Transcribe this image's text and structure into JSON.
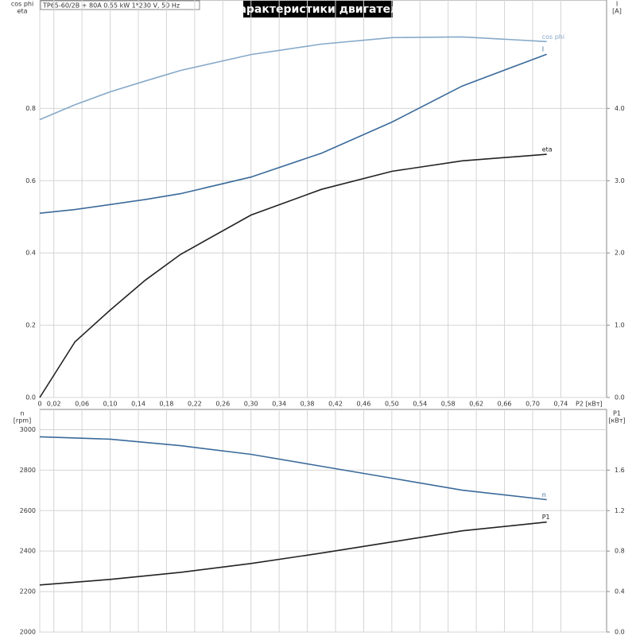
{
  "chart_data": [
    {
      "type": "line",
      "title": "Характеристики двигателя",
      "subtitle": "TP65-60/2B + 80A   0.55 kW   1*230 V, 50 Hz",
      "ylabel": [
        "cos phi",
        "eta"
      ],
      "y2label": [
        "I",
        "[A]"
      ],
      "xlabel": "P2 [кВт]",
      "x": [
        0,
        0.05,
        0.1,
        0.15,
        0.2,
        0.3,
        0.4,
        0.5,
        0.6,
        0.72
      ],
      "xlim": [
        0,
        0.805
      ],
      "xticks": [
        0,
        {
          "value": 0.02,
          "label": "0,02"
        },
        {
          "value": 0.06,
          "label": "0,06"
        },
        {
          "value": 0.1,
          "label": "0,10"
        },
        {
          "value": 0.14,
          "label": "0,14"
        },
        {
          "value": 0.18,
          "label": "0,18"
        },
        {
          "value": 0.22,
          "label": "0,22"
        },
        {
          "value": 0.26,
          "label": "0,26"
        },
        {
          "value": 0.3,
          "label": "0,30"
        },
        {
          "value": 0.34,
          "label": "0,34"
        },
        {
          "value": 0.38,
          "label": "0,38"
        },
        {
          "value": 0.42,
          "label": "0,42"
        },
        {
          "value": 0.46,
          "label": "0,46"
        },
        {
          "value": 0.5,
          "label": "0,50"
        },
        {
          "value": 0.54,
          "label": "0,54"
        },
        {
          "value": 0.58,
          "label": "0,58"
        },
        {
          "value": 0.62,
          "label": "0,62"
        },
        {
          "value": 0.66,
          "label": "0,66"
        },
        {
          "value": 0.7,
          "label": "0,70"
        },
        {
          "value": 0.74,
          "label": "0,74"
        }
      ],
      "ylim": [
        0,
        1.1
      ],
      "yticks": [
        {
          "value": 0,
          "label": "0.0"
        },
        0.2,
        0.4,
        0.6,
        0.8
      ],
      "y2lim": [
        0,
        5.5
      ],
      "y2ticks": [
        {
          "value": 0,
          "label": "0.0"
        },
        {
          "value": 1,
          "label": "1.0"
        },
        {
          "value": 2,
          "label": "2.0"
        },
        {
          "value": 3,
          "label": "3.0"
        },
        {
          "value": 4,
          "label": "4.0"
        }
      ],
      "grid": true,
      "series": [
        {
          "name": "cos phi",
          "color": "#86a9c9",
          "values": [
            0.769,
            0.81,
            0.846,
            0.876,
            0.905,
            0.949,
            0.978,
            0.996,
            0.998,
            0.985
          ]
        },
        {
          "name": "I",
          "color": "#3a6a9a",
          "axis": "y2",
          "values": [
            2.55,
            2.6,
            2.67,
            2.74,
            2.82,
            3.05,
            3.38,
            3.81,
            4.31,
            4.75
          ]
        },
        {
          "name": "eta",
          "color": "#222222",
          "values": [
            0,
            0.154,
            0.242,
            0.325,
            0.396,
            0.505,
            0.576,
            0.626,
            0.655,
            0.673
          ]
        }
      ]
    },
    {
      "type": "line",
      "ylabel": [
        "n",
        "[rpm]"
      ],
      "y2label": [
        "P1",
        "[кВт]"
      ],
      "x": [
        0,
        0.1,
        0.2,
        0.3,
        0.4,
        0.5,
        0.6,
        0.72
      ],
      "xlim": [
        0,
        0.805
      ],
      "ylim": [
        2000,
        3100
      ],
      "yticks": [
        2000,
        2200,
        2400,
        2600,
        2800,
        3000
      ],
      "y2lim": [
        0,
        2.2
      ],
      "y2ticks": [
        {
          "value": 0,
          "label": "0.0"
        },
        0.4,
        0.8,
        1.2,
        1.6
      ],
      "grid": true,
      "series": [
        {
          "name": "n",
          "color": "#3a6a9a",
          "values": [
            2965,
            2953,
            2921,
            2878,
            2819,
            2760,
            2701,
            2654
          ]
        },
        {
          "name": "P1",
          "color": "#222222",
          "axis": "y2",
          "values": [
            0.465,
            0.52,
            0.59,
            0.677,
            0.78,
            0.89,
            1.0,
            1.087
          ]
        }
      ]
    }
  ]
}
